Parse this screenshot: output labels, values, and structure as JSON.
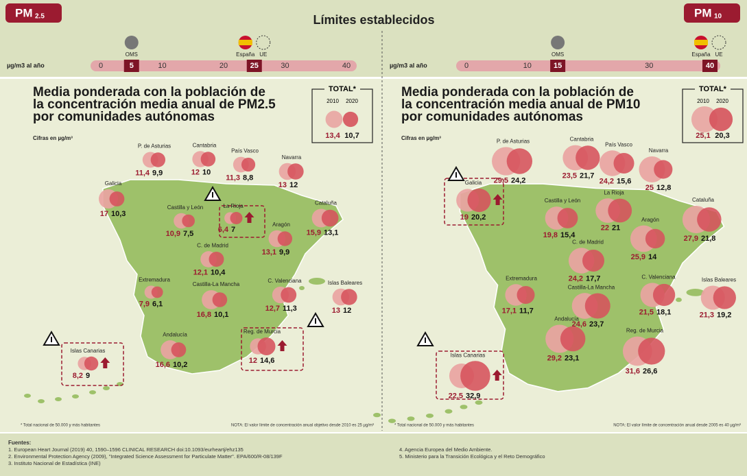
{
  "header": {
    "title": "Límites establecidos",
    "left_badge": {
      "main": "PM",
      "sub": "2.5"
    },
    "right_badge": {
      "main": "PM",
      "sub": "10"
    }
  },
  "panels": [
    {
      "scale": {
        "unit": "µg/m3 al año",
        "xlim": [
          0,
          40
        ],
        "ticks": [
          0,
          10,
          20,
          30,
          40
        ],
        "limits": [
          {
            "value": 5,
            "labels": [
              "OMS"
            ]
          },
          {
            "value": 25,
            "labels": [
              "España",
              "UE"
            ]
          }
        ]
      },
      "title_lines": [
        "Media ponderada con la población de",
        "la concentración media anual de PM2.5",
        "por comunidades autónomas"
      ],
      "subtitle": "Cifras en µg/m³",
      "total": {
        "label": "TOTAL*",
        "years": [
          "2010",
          "2020"
        ],
        "values": [
          13.4,
          10.7
        ],
        "value_labels": [
          "13,4",
          "10,7"
        ]
      },
      "regions": [
        {
          "name": "P. de Asturias",
          "values": [
            11.4,
            9.9
          ],
          "value_labels": [
            "11,4",
            "9,9"
          ]
        },
        {
          "name": "Cantabria",
          "values": [
            12,
            10
          ],
          "value_labels": [
            "12",
            "10"
          ]
        },
        {
          "name": "País Vasco",
          "values": [
            11.3,
            8.8
          ],
          "value_labels": [
            "11,3",
            "8,8"
          ]
        },
        {
          "name": "Navarra",
          "values": [
            13,
            12
          ],
          "value_labels": [
            "13",
            "12"
          ]
        },
        {
          "name": "Galicia",
          "values": [
            17,
            10.3
          ],
          "value_labels": [
            "17",
            "10,3"
          ]
        },
        {
          "name": "Castilla y León",
          "values": [
            10.9,
            7.5
          ],
          "value_labels": [
            "10,9",
            "7,5"
          ]
        },
        {
          "name": "La Rioja",
          "values": [
            6.4,
            7
          ],
          "value_labels": [
            "6,4",
            "7"
          ]
        },
        {
          "name": "Cataluña",
          "values": [
            15.9,
            13.1
          ],
          "value_labels": [
            "15,9",
            "13,1"
          ]
        },
        {
          "name": "Aragón",
          "values": [
            13.1,
            9.9
          ],
          "value_labels": [
            "13,1",
            "9,9"
          ]
        },
        {
          "name": "C. de Madrid",
          "values": [
            12.1,
            10.4
          ],
          "value_labels": [
            "12,1",
            "10,4"
          ]
        },
        {
          "name": "Extremadura",
          "values": [
            7.9,
            6.1
          ],
          "value_labels": [
            "7,9",
            "6,1"
          ]
        },
        {
          "name": "Castilla-La Mancha",
          "values": [
            16.8,
            10.1
          ],
          "value_labels": [
            "16,8",
            "10,1"
          ]
        },
        {
          "name": "C. Valenciana",
          "values": [
            12.7,
            11.3
          ],
          "value_labels": [
            "12,7",
            "11,3"
          ]
        },
        {
          "name": "Islas Baleares",
          "values": [
            13,
            12
          ],
          "value_labels": [
            "13",
            "12"
          ]
        },
        {
          "name": "Andalucía",
          "values": [
            16.6,
            10.2
          ],
          "value_labels": [
            "16,6",
            "10,2"
          ]
        },
        {
          "name": "Reg. de Murcia",
          "values": [
            12,
            14.6
          ],
          "value_labels": [
            "12",
            "14,6"
          ]
        },
        {
          "name": "Islas Canarias",
          "values": [
            8.2,
            9
          ],
          "value_labels": [
            "8,2",
            "9"
          ]
        }
      ],
      "footnote": "* Total nacional de 50.000 y más habitantes",
      "note": "NOTA: El valor límite de concentración anual objetivo desde 2010 es 25 µg/m³"
    },
    {
      "scale": {
        "unit": "µg/m3 al año",
        "xlim": [
          0,
          40
        ],
        "ticks": [
          0,
          10,
          30
        ],
        "limits": [
          {
            "value": 15,
            "labels": [
              "OMS"
            ]
          },
          {
            "value": 40,
            "labels": [
              "España",
              "UE"
            ]
          }
        ]
      },
      "title_lines": [
        "Media ponderada con la población de",
        "la concentración media anual de PM10",
        "por comunidades autónomas"
      ],
      "subtitle": "Cifras en µg/m³",
      "total": {
        "label": "TOTAL*",
        "years": [
          "2010",
          "2020"
        ],
        "values": [
          25.1,
          20.3
        ],
        "value_labels": [
          "25,1",
          "20,3"
        ]
      },
      "regions": [
        {
          "name": "P. de Asturias",
          "values": [
            29.5,
            24.2
          ],
          "value_labels": [
            "29,5",
            "24,2"
          ]
        },
        {
          "name": "Cantabria",
          "values": [
            23.5,
            21.7
          ],
          "value_labels": [
            "23,5",
            "21,7"
          ]
        },
        {
          "name": "País Vasco",
          "values": [
            24.2,
            15.6
          ],
          "value_labels": [
            "24,2",
            "15,6"
          ]
        },
        {
          "name": "Navarra",
          "values": [
            25,
            12.8
          ],
          "value_labels": [
            "25",
            "12,8"
          ]
        },
        {
          "name": "Galicia",
          "values": [
            19,
            20.2
          ],
          "value_labels": [
            "19",
            "20,2"
          ]
        },
        {
          "name": "Castilla y León",
          "values": [
            19.8,
            15.4
          ],
          "value_labels": [
            "19,8",
            "15,4"
          ]
        },
        {
          "name": "La Rioja",
          "values": [
            22,
            21
          ],
          "value_labels": [
            "22",
            "21"
          ]
        },
        {
          "name": "Cataluña",
          "values": [
            27.9,
            21.8
          ],
          "value_labels": [
            "27,9",
            "21,8"
          ]
        },
        {
          "name": "Aragón",
          "values": [
            25.9,
            14
          ],
          "value_labels": [
            "25,9",
            "14"
          ]
        },
        {
          "name": "C. de Madrid",
          "values": [
            24.2,
            17.7
          ],
          "value_labels": [
            "24,2",
            "17,7"
          ]
        },
        {
          "name": "Extremadura",
          "values": [
            17.1,
            11.7
          ],
          "value_labels": [
            "17,1",
            "11,7"
          ]
        },
        {
          "name": "Castilla-La Mancha",
          "values": [
            24.6,
            23.7
          ],
          "value_labels": [
            "24,6",
            "23,7"
          ]
        },
        {
          "name": "C. Valenciana",
          "values": [
            21.5,
            18.1
          ],
          "value_labels": [
            "21,5",
            "18,1"
          ]
        },
        {
          "name": "Islas Baleares",
          "values": [
            21.3,
            19.2
          ],
          "value_labels": [
            "21,3",
            "19,2"
          ]
        },
        {
          "name": "Andalucía",
          "values": [
            29.2,
            23.1
          ],
          "value_labels": [
            "29,2",
            "23,1"
          ]
        },
        {
          "name": "Reg. de Murcia",
          "values": [
            31.6,
            26.6
          ],
          "value_labels": [
            "31,6",
            "26,6"
          ]
        },
        {
          "name": "Islas Canarias",
          "values": [
            22.5,
            32.9
          ],
          "value_labels": [
            "22,5",
            "32,9"
          ]
        }
      ],
      "footnote": "* Total nacional de 50.000 y más habitantes",
      "note": "NOTA: El valor límite de concentración anual desde 2005 es 40 µg/m³"
    }
  ],
  "sources": {
    "heading": "Fuentes:",
    "items": [
      "1. European Heart Journal (2019) 40, 1590–1596 CLINICAL RESEARCH doi:10.1093/eurheartj/ehz135",
      "2. Environmental Protection Agency (2009), \"Integrated Science Assessment for Particulate Matter\". EPA/600/R-08/139F",
      "3. Instituto Nacional de Estadística (INE)",
      "4. Agencia Europea del Medio Ambiente.",
      "5. Ministerio para la Transición Ecológica y el Reto Demográfico"
    ]
  }
}
